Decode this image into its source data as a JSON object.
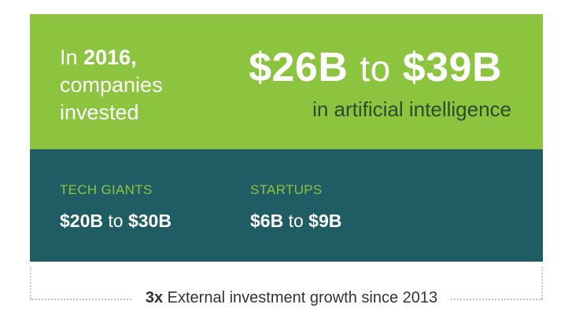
{
  "headline": {
    "intro_prefix": "In",
    "intro_year": "2016,",
    "intro_line2": "companies",
    "intro_line3": "invested",
    "range_low": "$26B",
    "range_joiner": "to",
    "range_high": "$39B",
    "subject": "in artificial intelligence"
  },
  "segments": [
    {
      "label": "TECH GIANTS",
      "low": "$20B",
      "joiner": "to",
      "high": "$30B"
    },
    {
      "label": "STARTUPS",
      "low": "$6B",
      "joiner": "to",
      "high": "$9B"
    }
  ],
  "footer": {
    "multiplier": "3x",
    "text": "External investment growth since 2013"
  }
}
